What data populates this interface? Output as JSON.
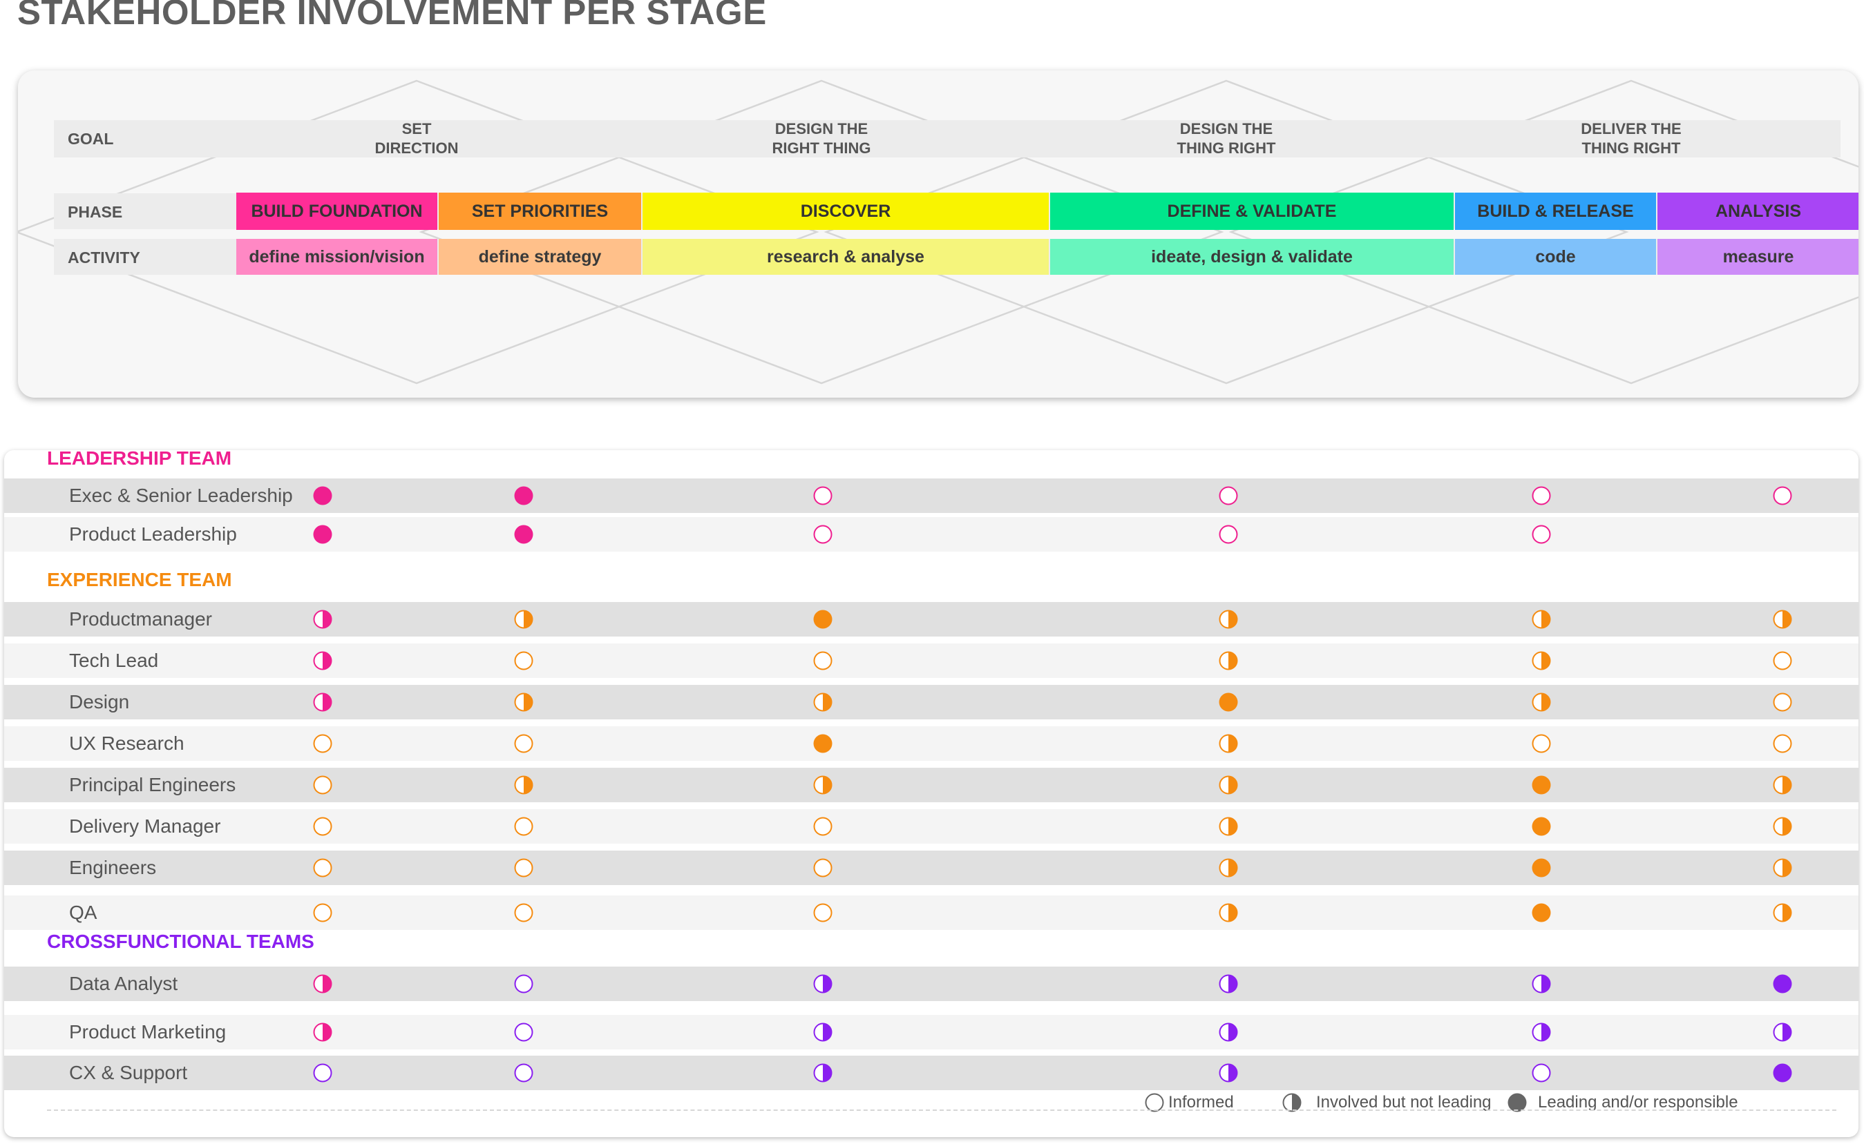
{
  "title": "STAKEHOLDER INVOLVEMENT PER STAGE",
  "header": {
    "row_labels": {
      "goal": "GOAL",
      "phase": "PHASE",
      "activity": "ACTIVITY"
    },
    "goals": [
      "SET\nDIRECTION",
      "DESIGN THE\nRIGHT THING",
      "DESIGN THE\nTHING RIGHT",
      "DELIVER THE\nTHING RIGHT"
    ],
    "phases": [
      {
        "label": "BUILD FOUNDATION",
        "color": "#ff2d97"
      },
      {
        "label": "SET PRIORITIES",
        "color": "#ff9a2e"
      },
      {
        "label": "DISCOVER",
        "color": "#f9f400"
      },
      {
        "label": "DEFINE & VALIDATE",
        "color": "#00e68c"
      },
      {
        "label": "BUILD & RELEASE",
        "color": "#2ea1f9"
      },
      {
        "label": "ANALYSIS",
        "color": "#a845f5"
      }
    ],
    "activities": [
      {
        "label": "define mission/vision",
        "color": "#ff88c4"
      },
      {
        "label": "define strategy",
        "color": "#ffc08a"
      },
      {
        "label": "research & analyse",
        "color": "#f5f57c"
      },
      {
        "label": "ideate, design & validate",
        "color": "#68f5be"
      },
      {
        "label": "code",
        "color": "#7fc1fa"
      },
      {
        "label": "measure",
        "color": "#cd8df8"
      }
    ]
  },
  "groups": [
    {
      "title": "LEADERSHIP TEAM",
      "color": "#ef1f8f",
      "rows": [
        {
          "name": "Exec & Senior Leadership",
          "values": [
            "full",
            "full",
            "empty",
            "empty",
            "empty",
            "empty"
          ]
        },
        {
          "name": "Product Leadership",
          "values": [
            "full",
            "full",
            "empty",
            "empty",
            "empty",
            ""
          ]
        }
      ]
    },
    {
      "title": "EXPERIENCE TEAM",
      "color": "#f58b10",
      "rows": [
        {
          "name": "Productmanager",
          "values": [
            "half",
            "half",
            "full",
            "half",
            "half",
            "half"
          ],
          "colors": [
            "#ef1f8f",
            "#f58b10",
            "#f58b10",
            "#f58b10",
            "#f58b10",
            "#f58b10"
          ]
        },
        {
          "name": "Tech Lead",
          "values": [
            "half",
            "empty",
            "empty",
            "half",
            "half",
            "empty"
          ],
          "colors": [
            "#ef1f8f",
            "#f58b10",
            "#f58b10",
            "#f58b10",
            "#f58b10",
            "#f58b10"
          ]
        },
        {
          "name": "Design",
          "values": [
            "half",
            "half",
            "half",
            "full",
            "half",
            "empty"
          ],
          "colors": [
            "#ef1f8f",
            "#f58b10",
            "#f58b10",
            "#f58b10",
            "#f58b10",
            "#f58b10"
          ]
        },
        {
          "name": "UX Research",
          "values": [
            "empty",
            "empty",
            "full",
            "half",
            "empty",
            "empty"
          ]
        },
        {
          "name": "Principal Engineers",
          "values": [
            "empty",
            "half",
            "half",
            "half",
            "full",
            "half"
          ]
        },
        {
          "name": "Delivery Manager",
          "values": [
            "empty",
            "empty",
            "empty",
            "half",
            "full",
            "half"
          ]
        },
        {
          "name": "Engineers",
          "values": [
            "empty",
            "empty",
            "empty",
            "half",
            "full",
            "half"
          ]
        },
        {
          "name": "QA",
          "values": [
            "empty",
            "empty",
            "empty",
            "half",
            "full",
            "half"
          ]
        }
      ]
    },
    {
      "title": "CROSSFUNCTIONAL TEAMS",
      "color": "#8a1ff0",
      "rows": [
        {
          "name": "Data Analyst",
          "values": [
            "half",
            "empty",
            "half",
            "half",
            "half",
            "full"
          ],
          "colors": [
            "#ef1f8f",
            "#8a1ff0",
            "#8a1ff0",
            "#8a1ff0",
            "#8a1ff0",
            "#8a1ff0"
          ]
        },
        {
          "name": "Product Marketing",
          "values": [
            "half",
            "empty",
            "half",
            "half",
            "half",
            "half"
          ],
          "colors": [
            "#ef1f8f",
            "#8a1ff0",
            "#8a1ff0",
            "#8a1ff0",
            "#8a1ff0",
            "#8a1ff0"
          ]
        },
        {
          "name": "CX & Support",
          "values": [
            "empty",
            "empty",
            "half",
            "half",
            "empty",
            "full"
          ]
        }
      ]
    }
  ],
  "legend": [
    {
      "type": "empty",
      "label": "Informed"
    },
    {
      "type": "half",
      "label": "Involved but not leading"
    },
    {
      "type": "full",
      "label": "Leading and/or responsible"
    }
  ],
  "legend_color": "#666666"
}
